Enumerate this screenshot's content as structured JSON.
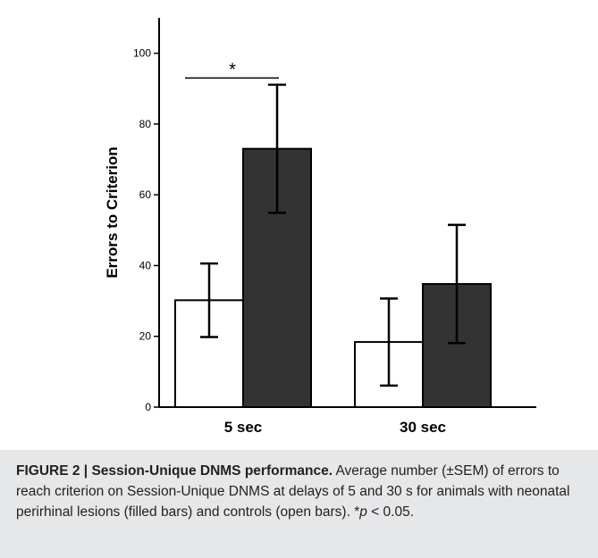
{
  "chart_data": {
    "type": "bar",
    "ylabel": "Errors to Criterion",
    "xlabel": "",
    "ylim": [
      0,
      110
    ],
    "yticks": [
      0,
      20,
      40,
      60,
      80,
      100
    ],
    "categories": [
      "5 sec",
      "30 sec"
    ],
    "series": [
      {
        "name": "",
        "values": [
          30.2,
          18.4
        ],
        "sem": [
          10.4,
          12.3
        ],
        "color": "#ffffff"
      },
      {
        "name": "",
        "values": [
          73.0,
          34.8
        ],
        "sem": [
          18.1,
          16.7
        ],
        "color": "#333333"
      }
    ],
    "annotations": [
      {
        "text": "*",
        "category": "5 sec",
        "y": 93
      }
    ],
    "grid": false,
    "legend": "none"
  },
  "caption": {
    "label": "FIGURE 2 |",
    "title": "Session-Unique DNMS performance.",
    "text_before_p": "Average number (±SEM) of errors to reach criterion on Session-Unique DNMS at delays of 5 and 30 s for animals with neonatal perirhinal lesions (filled bars) and controls (open bars). *",
    "p_var": "p",
    "text_after_p": " < 0.05."
  }
}
